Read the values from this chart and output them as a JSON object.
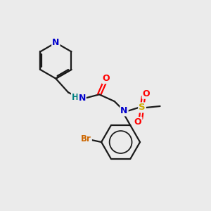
{
  "bg_color": "#ebebeb",
  "atom_colors": {
    "C": "#000000",
    "N": "#0000cc",
    "O": "#ff0000",
    "S": "#ccaa00",
    "Br": "#cc6600",
    "H": "#008080"
  },
  "bond_color": "#1a1a1a",
  "figsize": [
    3.0,
    3.0
  ],
  "dpi": 100,
  "lw": 1.6,
  "fs": 8.5
}
